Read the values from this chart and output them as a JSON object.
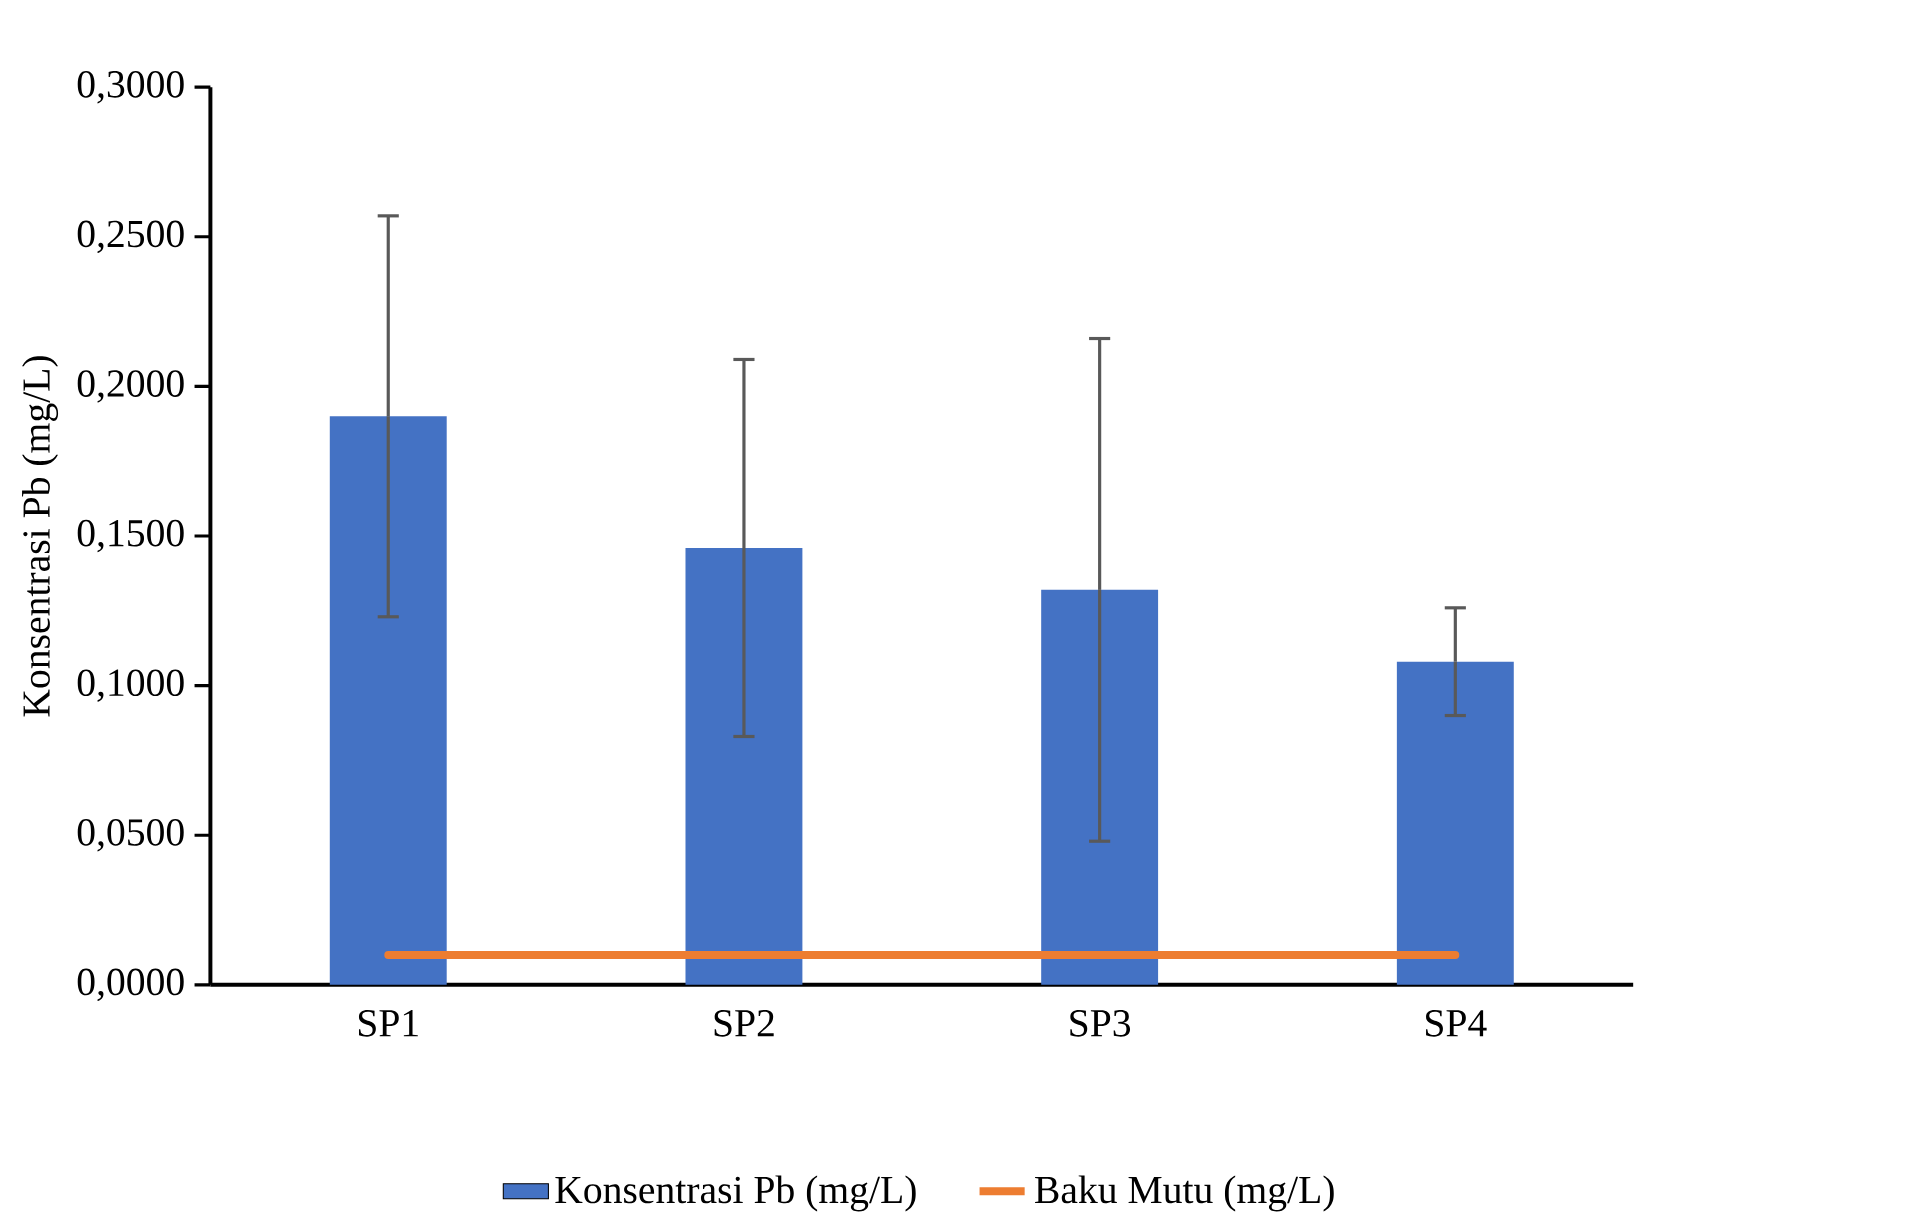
{
  "chart_data": {
    "type": "bar",
    "ylabel": "Konsentrasi Pb (mg/L)",
    "categories": [
      "SP1",
      "SP2",
      "SP3",
      "SP4"
    ],
    "series": [
      {
        "name": "Konsentrasi Pb (mg/L)",
        "color": "#4472c4",
        "values": [
          0.19,
          0.146,
          0.132,
          0.108
        ],
        "errors": [
          0.067,
          0.063,
          0.084,
          0.018
        ]
      },
      {
        "name": "Baku Mutu (mg/L)",
        "type": "line",
        "color": "#ed7d31",
        "values": [
          0.01,
          0.01,
          0.01,
          0.01
        ]
      }
    ],
    "ylim": [
      0,
      0.3
    ],
    "yticks": [
      {
        "value": 0,
        "label": "0,0000"
      },
      {
        "value": 0.05,
        "label": "0,0500"
      },
      {
        "value": 0.1,
        "label": "0,1000"
      },
      {
        "value": 0.15,
        "label": "0,1500"
      },
      {
        "value": 0.2,
        "label": "0,2000"
      },
      {
        "value": 0.25,
        "label": "0,2500"
      },
      {
        "value": 0.3,
        "label": "0,3000"
      }
    ],
    "grid": false,
    "legend": "bottom"
  }
}
